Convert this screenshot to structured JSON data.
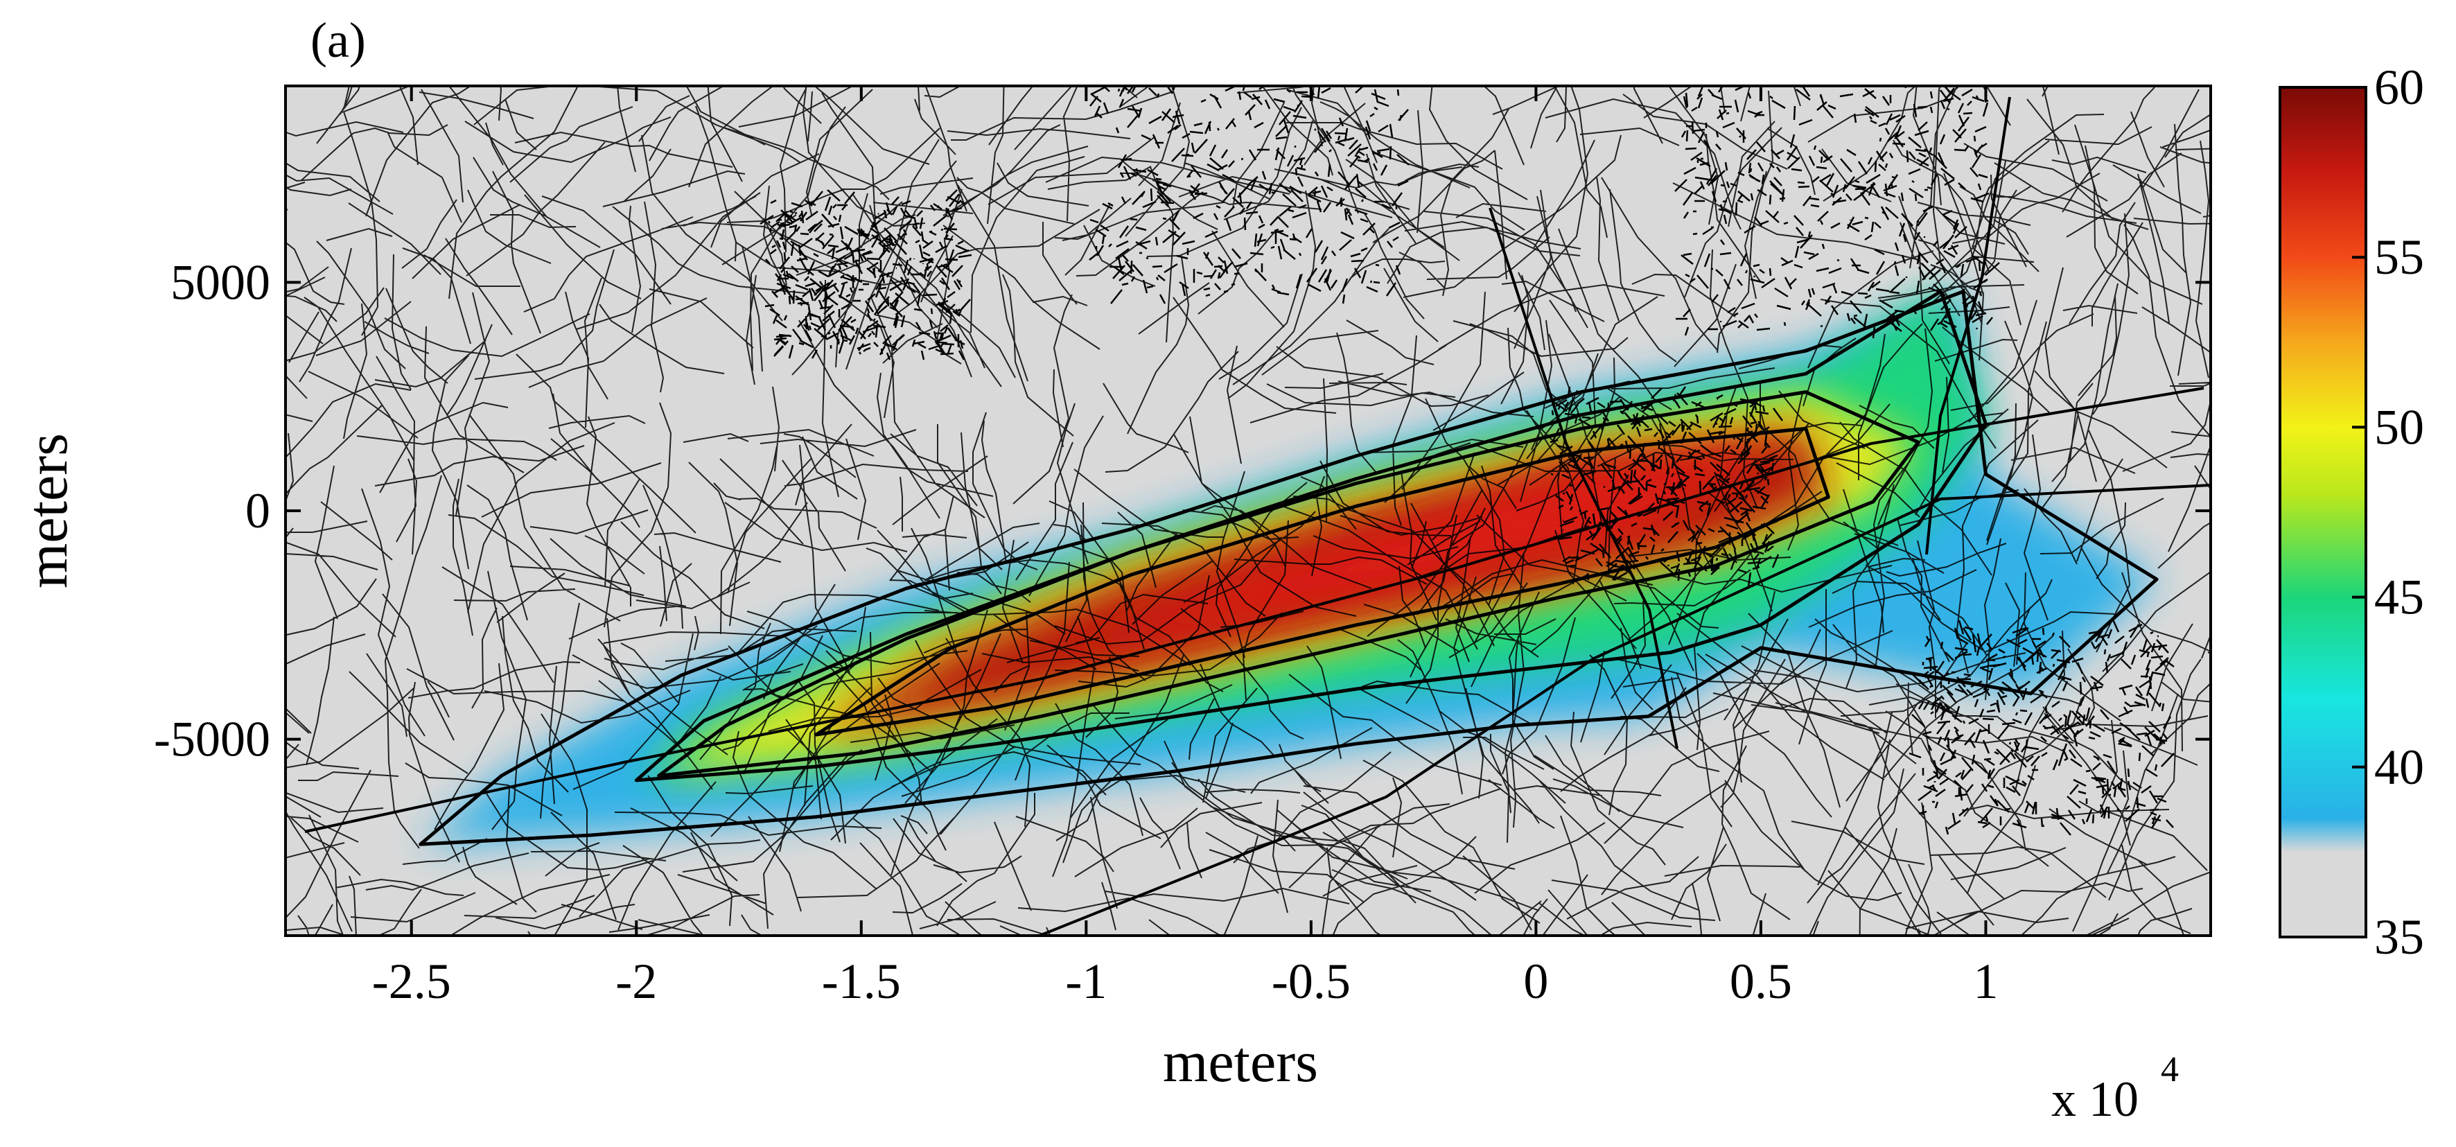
{
  "panel_label": "(a)",
  "x_axis": {
    "label": "meters",
    "multiplier": "x 10",
    "multiplier_exponent": "4",
    "range": [
      -2.78,
      1.5
    ],
    "ticks": [
      {
        "value": -2.5,
        "label": "-2.5"
      },
      {
        "value": -2,
        "label": "-2"
      },
      {
        "value": -1.5,
        "label": "-1.5"
      },
      {
        "value": -1,
        "label": "-1"
      },
      {
        "value": -0.5,
        "label": "-0.5"
      },
      {
        "value": 0,
        "label": "0"
      },
      {
        "value": 0.5,
        "label": "0.5"
      },
      {
        "value": 1,
        "label": "1"
      }
    ]
  },
  "y_axis": {
    "label": "meters",
    "range": [
      -9300,
      9300
    ],
    "ticks": [
      {
        "value": 5000,
        "label": "5000"
      },
      {
        "value": 0,
        "label": "0"
      },
      {
        "value": -5000,
        "label": "-5000"
      }
    ]
  },
  "colorbar": {
    "range": [
      35,
      60
    ],
    "ticks": [
      {
        "value": 60,
        "label": "60"
      },
      {
        "value": 55,
        "label": "55"
      },
      {
        "value": 50,
        "label": "50"
      },
      {
        "value": 45,
        "label": "45"
      },
      {
        "value": 40,
        "label": "40"
      },
      {
        "value": 35,
        "label": "35"
      }
    ],
    "stops": [
      {
        "value": 35,
        "color": "#d9d9d9"
      },
      {
        "value": 37.5,
        "color": "#d9d9d9"
      },
      {
        "value": 38.5,
        "color": "#2ab0e8"
      },
      {
        "value": 42,
        "color": "#18e6e0"
      },
      {
        "value": 45,
        "color": "#1cd67a"
      },
      {
        "value": 48,
        "color": "#b8e81c"
      },
      {
        "value": 50,
        "color": "#f2f218"
      },
      {
        "value": 52.5,
        "color": "#f5a81c"
      },
      {
        "value": 55,
        "color": "#f24a18"
      },
      {
        "value": 57.5,
        "color": "#c81a10"
      },
      {
        "value": 60,
        "color": "#7a0a06"
      }
    ]
  },
  "chart_data": {
    "type": "heatmap",
    "xlabel": "meters",
    "ylabel": "meters",
    "x_unit_multiplier": "x 10^4",
    "xlim": [
      -2.78,
      1.5
    ],
    "ylim": [
      -9300,
      9300
    ],
    "value_range": [
      35,
      60
    ],
    "contour_bands": [
      {
        "level": 40,
        "points": [
          [
            -2.48,
            -7300
          ],
          [
            -2.1,
            -7100
          ],
          [
            -1.6,
            -6700
          ],
          [
            -1.2,
            -6200
          ],
          [
            -0.8,
            -5700
          ],
          [
            -0.4,
            -5100
          ],
          [
            -0.05,
            -4700
          ],
          [
            0.25,
            -4500
          ],
          [
            0.5,
            -3000
          ],
          [
            1.1,
            -4000
          ],
          [
            1.38,
            -1500
          ],
          [
            1.0,
            800
          ],
          [
            0.95,
            4800
          ],
          [
            0.6,
            3500
          ],
          [
            0.1,
            2600
          ],
          [
            -0.4,
            1200
          ],
          [
            -0.9,
            -400
          ],
          [
            -1.4,
            -1700
          ],
          [
            -1.9,
            -3600
          ],
          [
            -2.3,
            -5800
          ]
        ]
      },
      {
        "level": 45,
        "points": [
          [
            -2.0,
            -5900
          ],
          [
            -1.6,
            -5600
          ],
          [
            -1.2,
            -5100
          ],
          [
            -0.8,
            -4500
          ],
          [
            -0.4,
            -3900
          ],
          [
            -0.05,
            -3500
          ],
          [
            0.3,
            -3100
          ],
          [
            0.5,
            -2500
          ],
          [
            0.85,
            -300
          ],
          [
            1.0,
            1900
          ],
          [
            0.9,
            4800
          ],
          [
            0.6,
            3000
          ],
          [
            0.1,
            2100
          ],
          [
            -0.4,
            700
          ],
          [
            -0.9,
            -900
          ],
          [
            -1.4,
            -2700
          ],
          [
            -1.85,
            -4600
          ]
        ]
      },
      {
        "level": 50,
        "points": [
          [
            -1.95,
            -5800
          ],
          [
            -1.5,
            -5300
          ],
          [
            -1.1,
            -4500
          ],
          [
            -0.7,
            -3600
          ],
          [
            -0.3,
            -2700
          ],
          [
            0.05,
            -1900
          ],
          [
            0.4,
            -1200
          ],
          [
            0.75,
            200
          ],
          [
            0.85,
            1500
          ],
          [
            0.6,
            2600
          ],
          [
            0.1,
            1800
          ],
          [
            -0.4,
            600
          ],
          [
            -0.9,
            -900
          ],
          [
            -1.4,
            -2800
          ],
          [
            -1.8,
            -4700
          ]
        ]
      },
      {
        "level": 55,
        "points": [
          [
            -1.6,
            -4900
          ],
          [
            -1.2,
            -4300
          ],
          [
            -0.8,
            -3400
          ],
          [
            -0.4,
            -2500
          ],
          [
            0.05,
            -1600
          ],
          [
            0.4,
            -800
          ],
          [
            0.65,
            300
          ],
          [
            0.6,
            1800
          ],
          [
            0.1,
            1300
          ],
          [
            -0.4,
            100
          ],
          [
            -0.9,
            -1400
          ],
          [
            -1.3,
            -3000
          ]
        ]
      }
    ],
    "roads": "dense black road-network overlay across the whole map",
    "notes": "highest values (~60) along a SW–NE elongated core from about x=-1.5e4 to x=0.6e4"
  }
}
